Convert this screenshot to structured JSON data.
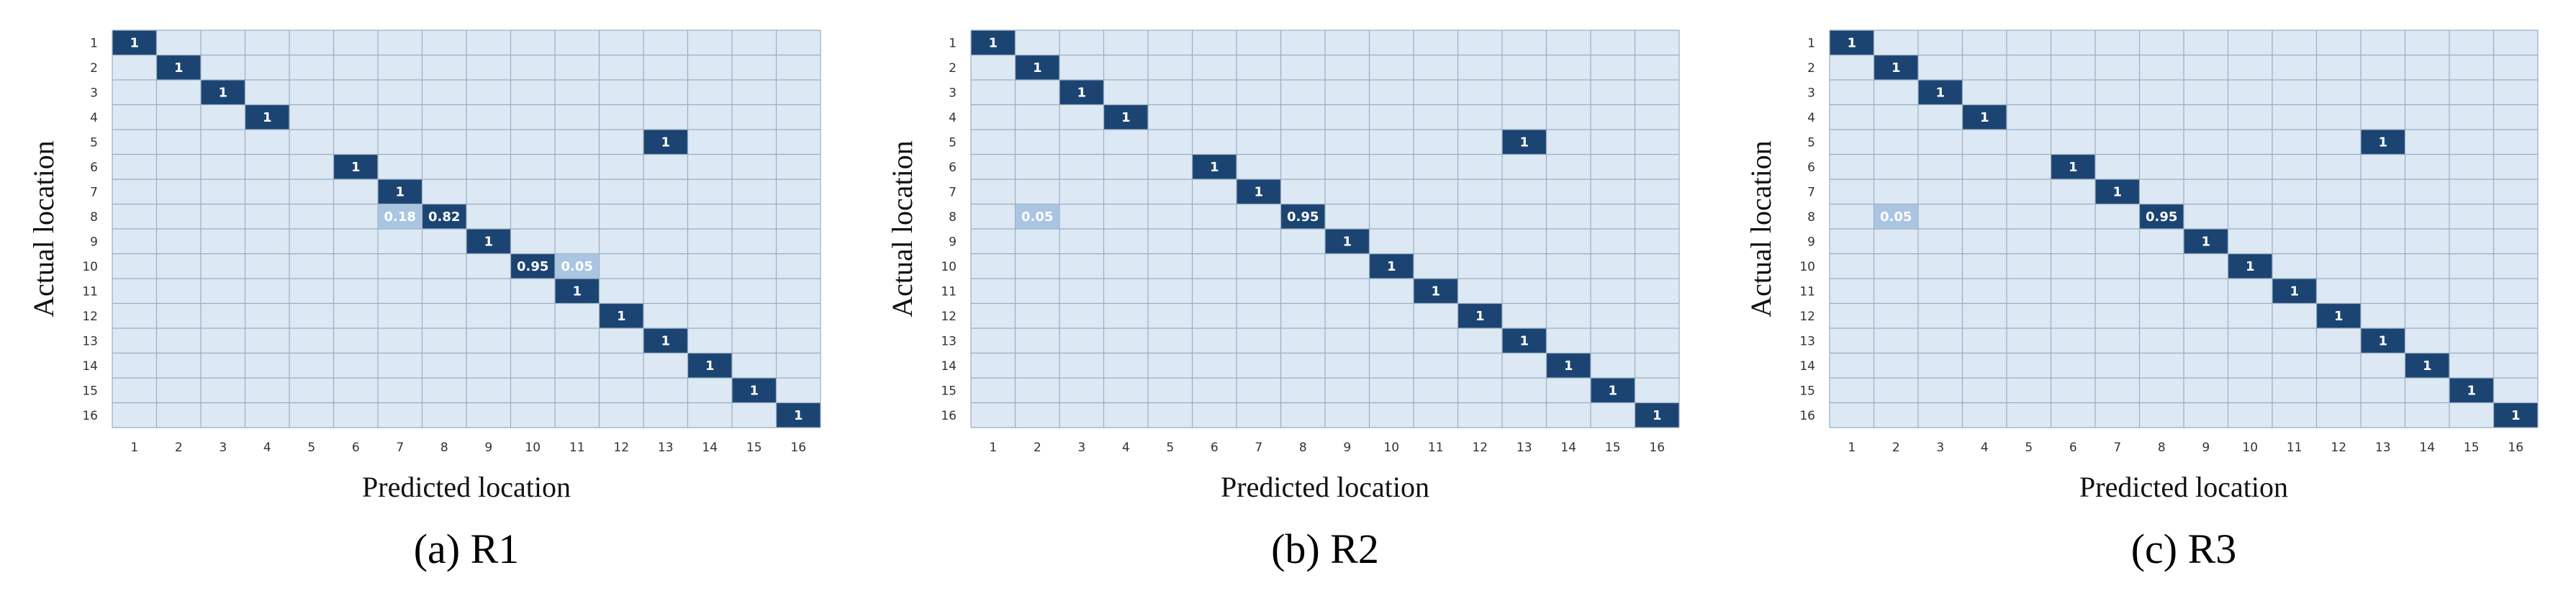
{
  "chart_data": [
    {
      "type": "heatmap",
      "caption": "(a) R1",
      "xlabel": "Predicted location",
      "ylabel": "Actual location",
      "x_categories": [
        "1",
        "2",
        "3",
        "4",
        "5",
        "6",
        "7",
        "8",
        "9",
        "10",
        "11",
        "12",
        "13",
        "14",
        "15",
        "16"
      ],
      "y_categories": [
        "1",
        "2",
        "3",
        "4",
        "5",
        "6",
        "7",
        "8",
        "9",
        "10",
        "11",
        "12",
        "13",
        "14",
        "15",
        "16"
      ],
      "cells": [
        {
          "actual": 1,
          "predicted": 1,
          "value": 1,
          "label": "1"
        },
        {
          "actual": 2,
          "predicted": 2,
          "value": 1,
          "label": "1"
        },
        {
          "actual": 3,
          "predicted": 3,
          "value": 1,
          "label": "1"
        },
        {
          "actual": 4,
          "predicted": 4,
          "value": 1,
          "label": "1"
        },
        {
          "actual": 5,
          "predicted": 13,
          "value": 1,
          "label": "1"
        },
        {
          "actual": 6,
          "predicted": 6,
          "value": 1,
          "label": "1"
        },
        {
          "actual": 7,
          "predicted": 7,
          "value": 1,
          "label": "1"
        },
        {
          "actual": 8,
          "predicted": 7,
          "value": 0.18,
          "label": "0.18"
        },
        {
          "actual": 8,
          "predicted": 8,
          "value": 0.82,
          "label": "0.82"
        },
        {
          "actual": 9,
          "predicted": 9,
          "value": 1,
          "label": "1"
        },
        {
          "actual": 10,
          "predicted": 10,
          "value": 0.95,
          "label": "0.95"
        },
        {
          "actual": 10,
          "predicted": 11,
          "value": 0.05,
          "label": "0.05"
        },
        {
          "actual": 11,
          "predicted": 11,
          "value": 1,
          "label": "1"
        },
        {
          "actual": 12,
          "predicted": 12,
          "value": 1,
          "label": "1"
        },
        {
          "actual": 13,
          "predicted": 13,
          "value": 1,
          "label": "1"
        },
        {
          "actual": 14,
          "predicted": 14,
          "value": 1,
          "label": "1"
        },
        {
          "actual": 15,
          "predicted": 15,
          "value": 1,
          "label": "1"
        },
        {
          "actual": 16,
          "predicted": 16,
          "value": 1,
          "label": "1"
        }
      ]
    },
    {
      "type": "heatmap",
      "caption": "(b) R2",
      "xlabel": "Predicted location",
      "ylabel": "Actual location",
      "x_categories": [
        "1",
        "2",
        "3",
        "4",
        "5",
        "6",
        "7",
        "8",
        "9",
        "10",
        "11",
        "12",
        "13",
        "14",
        "15",
        "16"
      ],
      "y_categories": [
        "1",
        "2",
        "3",
        "4",
        "5",
        "6",
        "7",
        "8",
        "9",
        "10",
        "11",
        "12",
        "13",
        "14",
        "15",
        "16"
      ],
      "cells": [
        {
          "actual": 1,
          "predicted": 1,
          "value": 1,
          "label": "1"
        },
        {
          "actual": 2,
          "predicted": 2,
          "value": 1,
          "label": "1"
        },
        {
          "actual": 3,
          "predicted": 3,
          "value": 1,
          "label": "1"
        },
        {
          "actual": 4,
          "predicted": 4,
          "value": 1,
          "label": "1"
        },
        {
          "actual": 5,
          "predicted": 13,
          "value": 1,
          "label": "1"
        },
        {
          "actual": 6,
          "predicted": 6,
          "value": 1,
          "label": "1"
        },
        {
          "actual": 7,
          "predicted": 7,
          "value": 1,
          "label": "1"
        },
        {
          "actual": 8,
          "predicted": 2,
          "value": 0.05,
          "label": "0.05"
        },
        {
          "actual": 8,
          "predicted": 8,
          "value": 0.95,
          "label": "0.95"
        },
        {
          "actual": 9,
          "predicted": 9,
          "value": 1,
          "label": "1"
        },
        {
          "actual": 10,
          "predicted": 10,
          "value": 1,
          "label": "1"
        },
        {
          "actual": 11,
          "predicted": 11,
          "value": 1,
          "label": "1"
        },
        {
          "actual": 12,
          "predicted": 12,
          "value": 1,
          "label": "1"
        },
        {
          "actual": 13,
          "predicted": 13,
          "value": 1,
          "label": "1"
        },
        {
          "actual": 14,
          "predicted": 14,
          "value": 1,
          "label": "1"
        },
        {
          "actual": 15,
          "predicted": 15,
          "value": 1,
          "label": "1"
        },
        {
          "actual": 16,
          "predicted": 16,
          "value": 1,
          "label": "1"
        }
      ]
    },
    {
      "type": "heatmap",
      "caption": "(c) R3",
      "xlabel": "Predicted location",
      "ylabel": "Actual location",
      "x_categories": [
        "1",
        "2",
        "3",
        "4",
        "5",
        "6",
        "7",
        "8",
        "9",
        "10",
        "11",
        "12",
        "13",
        "14",
        "15",
        "16"
      ],
      "y_categories": [
        "1",
        "2",
        "3",
        "4",
        "5",
        "6",
        "7",
        "8",
        "9",
        "10",
        "11",
        "12",
        "13",
        "14",
        "15",
        "16"
      ],
      "cells": [
        {
          "actual": 1,
          "predicted": 1,
          "value": 1,
          "label": "1"
        },
        {
          "actual": 2,
          "predicted": 2,
          "value": 1,
          "label": "1"
        },
        {
          "actual": 3,
          "predicted": 3,
          "value": 1,
          "label": "1"
        },
        {
          "actual": 4,
          "predicted": 4,
          "value": 1,
          "label": "1"
        },
        {
          "actual": 5,
          "predicted": 13,
          "value": 1,
          "label": "1"
        },
        {
          "actual": 6,
          "predicted": 6,
          "value": 1,
          "label": "1"
        },
        {
          "actual": 7,
          "predicted": 7,
          "value": 1,
          "label": "1"
        },
        {
          "actual": 8,
          "predicted": 2,
          "value": 0.05,
          "label": "0.05"
        },
        {
          "actual": 8,
          "predicted": 8,
          "value": 0.95,
          "label": "0.95"
        },
        {
          "actual": 9,
          "predicted": 9,
          "value": 1,
          "label": "1"
        },
        {
          "actual": 10,
          "predicted": 10,
          "value": 1,
          "label": "1"
        },
        {
          "actual": 11,
          "predicted": 11,
          "value": 1,
          "label": "1"
        },
        {
          "actual": 12,
          "predicted": 12,
          "value": 1,
          "label": "1"
        },
        {
          "actual": 13,
          "predicted": 13,
          "value": 1,
          "label": "1"
        },
        {
          "actual": 14,
          "predicted": 14,
          "value": 1,
          "label": "1"
        },
        {
          "actual": 15,
          "predicted": 15,
          "value": 1,
          "label": "1"
        },
        {
          "actual": 16,
          "predicted": 16,
          "value": 1,
          "label": "1"
        }
      ]
    }
  ],
  "colors": {
    "background_cell": "#dde8f5",
    "grid_line": "#9aaebf",
    "high_value": "#1b4472",
    "low_value": "#a9c5e2",
    "label_on_dark": "#ffffff",
    "label_on_light": "#ffffff"
  }
}
